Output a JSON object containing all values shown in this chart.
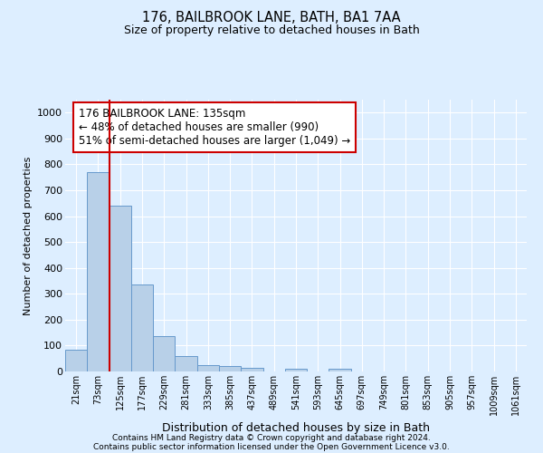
{
  "title1": "176, BAILBROOK LANE, BATH, BA1 7AA",
  "title2": "Size of property relative to detached houses in Bath",
  "xlabel": "Distribution of detached houses by size in Bath",
  "ylabel": "Number of detached properties",
  "categories": [
    "21sqm",
    "73sqm",
    "125sqm",
    "177sqm",
    "229sqm",
    "281sqm",
    "333sqm",
    "385sqm",
    "437sqm",
    "489sqm",
    "541sqm",
    "593sqm",
    "645sqm",
    "697sqm",
    "749sqm",
    "801sqm",
    "853sqm",
    "905sqm",
    "957sqm",
    "1009sqm",
    "1061sqm"
  ],
  "values": [
    85,
    770,
    640,
    335,
    135,
    60,
    25,
    20,
    15,
    0,
    10,
    0,
    10,
    0,
    0,
    0,
    0,
    0,
    0,
    0,
    0
  ],
  "bar_color": "#b8d0e8",
  "bar_edge_color": "#6699cc",
  "bg_color": "#ddeeff",
  "grid_color": "#ffffff",
  "annotation_text": "176 BAILBROOK LANE: 135sqm\n← 48% of detached houses are smaller (990)\n51% of semi-detached houses are larger (1,049) →",
  "vline_color": "#cc0000",
  "vline_x": 2.0,
  "annotation_box_color": "#ffffff",
  "annotation_box_edge": "#cc0000",
  "footer1": "Contains HM Land Registry data © Crown copyright and database right 2024.",
  "footer2": "Contains public sector information licensed under the Open Government Licence v3.0.",
  "ylim": [
    0,
    1050
  ],
  "yticks": [
    0,
    100,
    200,
    300,
    400,
    500,
    600,
    700,
    800,
    900,
    1000
  ]
}
